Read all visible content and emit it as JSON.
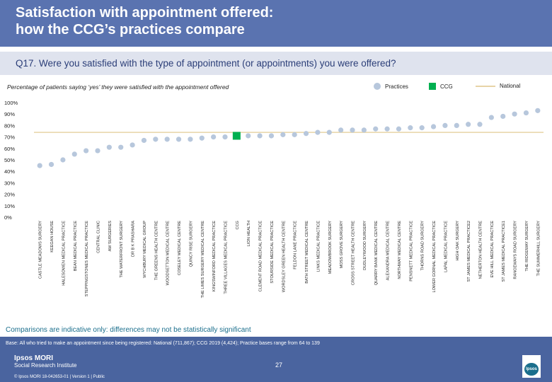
{
  "header": {
    "title": "Satisfaction with appointment offered:\nhow the CCG’s practices compare"
  },
  "question": "Q17. Were you satisfied with the type of appointment (or appointments) you were offered?",
  "subtitle": "Percentage of patients saying ‘yes’ they were satisfied with the appointment offered",
  "legend": {
    "practices": "Practices",
    "ccg": "CCG",
    "national": "National"
  },
  "colors": {
    "practice": "#b7c7dc",
    "ccg": "#00b050",
    "national": "#e7d4a6",
    "header": "#5a73b0",
    "footer": "#4a649f",
    "note": "#1a6e8c"
  },
  "chart_data": {
    "type": "scatter",
    "ylim": [
      0,
      100
    ],
    "yticks": [
      "0%",
      "10%",
      "20%",
      "30%",
      "40%",
      "50%",
      "60%",
      "70%",
      "80%",
      "90%",
      "100%"
    ],
    "national_value": 74,
    "ccg_index": 17,
    "categories": [
      "CASTLE MEADOWS SURGERY",
      "KEEGAN HOUSE",
      "HALESOWEN MEDICAL PRACTICE",
      "BEAN MEDICAL PRACTICE",
      "STEPPINGSTONES MEDICAL PRACTICE",
      "CENTRAL CLINIC",
      "AW SURGERIES",
      "THE WATERFRONT SURGERY",
      "DR B K PRASHARA",
      "WYCHBURY MEDICAL GROUP",
      "THE GREENS HEALTH CENTRE",
      "WOODSETTON MEDICAL CENTRE",
      "COSELEY MEDICAL CENTRE",
      "QUINCY RISE SURGERY",
      "THE LIMES SURGERY MEDICAL CENTRE",
      "KINGSWINFORD MEDICAL PRACTICE",
      "THREE VILLAGES MEDICAL PRACTICE",
      "CCG",
      "LION HEALTH",
      "CLEMENT ROAD MEDICAL PRACTICE",
      "STOURSIDE MEDICAL PRACTICE",
      "WORDSLEY GREEN HEALTH CENTRE",
      "FELDON LANE PRACTICE",
      "BATH STREET MEDICAL CENTRE",
      "LINKS MEDICAL PRACTICE",
      "MEADOWBROOK SURGERY",
      "MOSS GROVE SURGERY",
      "CROSS STREET HEALTH CENTRE",
      "DUDLEYWOOD SURGERY",
      "QUARRY BANK MEDICAL CENTRE",
      "ALEXANDRA MEDICAL CENTRE",
      "NORTHWAY MEDICAL CENTRE",
      "PENSNETT MEDICAL PRACTICE",
      "THORNS ROAD SURGERY",
      "LOWER GORNAL MEDICAL PRACTICE",
      "LAPAL MEDICAL PRACTICE",
      "HIGH OAK SURGERY",
      "ST JAMES MEDICAL PRACTICE2",
      "NETHERTON HEALTH CENTRE",
      "EVE HILL MEDICAL PRACTICE",
      "ST JAMES MEDICAL PRACTICE1",
      "RANGEWAYS ROAD SURGERY",
      "THE RIDGEWAY SURGERY",
      "THE SUMMERHILL SURGERY"
    ],
    "values": [
      45,
      46,
      50,
      55,
      58,
      58,
      61,
      61,
      63,
      67,
      68,
      68,
      68,
      68,
      69,
      70,
      70,
      71,
      71,
      71,
      71,
      72,
      72,
      73,
      74,
      74,
      76,
      76,
      76,
      77,
      77,
      77,
      78,
      78,
      79,
      80,
      80,
      81,
      81,
      87,
      88,
      90,
      91,
      93
    ]
  },
  "note": "Comparisons are indicative only: differences may not be statistically significant",
  "footer": {
    "base": "Base: All who tried to make an appointment since being registered: National (711,867); CCG 2019 (4,424); Practice bases range from 64 to 139",
    "logo_title": "Ipsos MORI",
    "logo_sub": "Social Research Institute",
    "page_number": "27",
    "copyright": "© Ipsos MORI   18-042653-01 | Version 1 | Public",
    "ipsos_badge": "Ipsos"
  }
}
